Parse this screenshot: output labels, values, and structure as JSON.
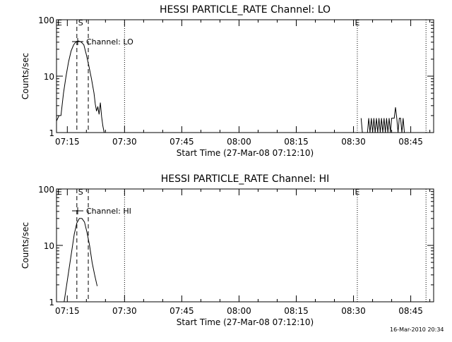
{
  "chart_data": [
    {
      "type": "line",
      "title": "HESSI PARTICLE_RATE Channel: LO",
      "xlabel": "Start Time (27-Mar-08 07:12:10)",
      "ylabel": "Counts/sec",
      "yscale": "log",
      "xlim": [
        "07:12:10",
        "08:51:00"
      ],
      "ylim": [
        1,
        100
      ],
      "xticks": [
        "07:15",
        "07:30",
        "07:45",
        "08:00",
        "08:15",
        "08:30",
        "08:45"
      ],
      "yticks": [
        "1",
        "10",
        "100"
      ],
      "legend": "Channel: LO",
      "dashed_markers": [
        "07:17:30",
        "07:20:30"
      ],
      "dotted_markers": [
        "07:30:00",
        "08:31:00",
        "08:49:00"
      ],
      "marker_labels": [
        {
          "text": "E",
          "x": "07:13:00"
        },
        {
          "text": "S",
          "x": "07:18:30"
        },
        {
          "text": "E",
          "x": "08:31:00"
        }
      ],
      "series": [
        {
          "x": [
            "07:12:10",
            "07:12:50",
            "07:13:20",
            "07:14:00",
            "07:14:40",
            "07:15:20",
            "07:16:00",
            "07:16:40",
            "07:17:20",
            "07:18:00",
            "07:18:40",
            "07:19:20",
            "07:20:00",
            "07:20:40",
            "07:21:20",
            "07:22:00",
            "07:22:20",
            "07:22:40",
            "07:23:00",
            "07:23:20",
            "07:23:40",
            "07:24:00",
            "07:24:20",
            "07:24:40"
          ],
          "values": [
            1.6,
            2.0,
            2.0,
            5,
            10,
            18,
            28,
            36,
            41,
            42,
            40,
            36,
            24,
            15,
            9,
            5,
            3.2,
            2.4,
            2.9,
            2.1,
            3.4,
            1.9,
            1.3,
            1
          ]
        },
        {
          "x": [
            "08:32:00",
            "08:32:20",
            "08:32:40",
            "08:33:00",
            "08:33:20",
            "08:33:40",
            "08:34:00",
            "08:34:20",
            "08:34:40",
            "08:35:00",
            "08:35:20",
            "08:35:40",
            "08:36:00",
            "08:36:20",
            "08:36:40",
            "08:37:00",
            "08:37:20",
            "08:37:40",
            "08:38:00",
            "08:38:20",
            "08:38:40",
            "08:39:00",
            "08:39:20",
            "08:39:40",
            "08:40:00",
            "08:40:20",
            "08:40:40",
            "08:41:00",
            "08:41:20",
            "08:41:40",
            "08:42:00",
            "08:42:20",
            "08:42:40",
            "08:43:00",
            "08:43:20",
            "08:43:40"
          ],
          "values": [
            1.8,
            1,
            1,
            1,
            1,
            1,
            1.8,
            1,
            1.8,
            1,
            1.8,
            1,
            1.8,
            1,
            1.8,
            1,
            1.8,
            1,
            1.8,
            1,
            1.8,
            1,
            1.8,
            1,
            1.8,
            1.8,
            1.8,
            2.8,
            1.8,
            1,
            1.8,
            1.8,
            1,
            1.8,
            1,
            1
          ]
        }
      ]
    },
    {
      "type": "line",
      "title": "HESSI PARTICLE_RATE Channel: HI",
      "xlabel": "Start Time (27-Mar-08 07:12:10)",
      "ylabel": "Counts/sec",
      "yscale": "log",
      "xlim": [
        "07:12:10",
        "08:51:00"
      ],
      "ylim": [
        1,
        100
      ],
      "xticks": [
        "07:15",
        "07:30",
        "07:45",
        "08:00",
        "08:15",
        "08:30",
        "08:45"
      ],
      "yticks": [
        "1",
        "10",
        "100"
      ],
      "legend": "Channel: HI",
      "dashed_markers": [
        "07:17:30",
        "07:20:30"
      ],
      "dotted_markers": [
        "07:30:00",
        "08:31:00",
        "08:49:00"
      ],
      "marker_labels": [
        {
          "text": "E",
          "x": "07:13:00"
        },
        {
          "text": "S",
          "x": "07:18:30"
        },
        {
          "text": "E",
          "x": "08:31:00"
        }
      ],
      "series": [
        {
          "x": [
            "07:14:10",
            "07:14:50",
            "07:15:30",
            "07:16:10",
            "07:16:50",
            "07:17:30",
            "07:18:10",
            "07:18:50",
            "07:19:30",
            "07:20:10",
            "07:20:50",
            "07:21:30",
            "07:22:10",
            "07:22:50"
          ],
          "values": [
            1,
            2,
            4,
            8,
            16,
            25,
            30,
            30,
            26,
            17,
            10,
            5,
            3,
            1.9
          ]
        }
      ]
    }
  ],
  "footer": {
    "timestamp": "16-Mar-2010 20:34"
  }
}
